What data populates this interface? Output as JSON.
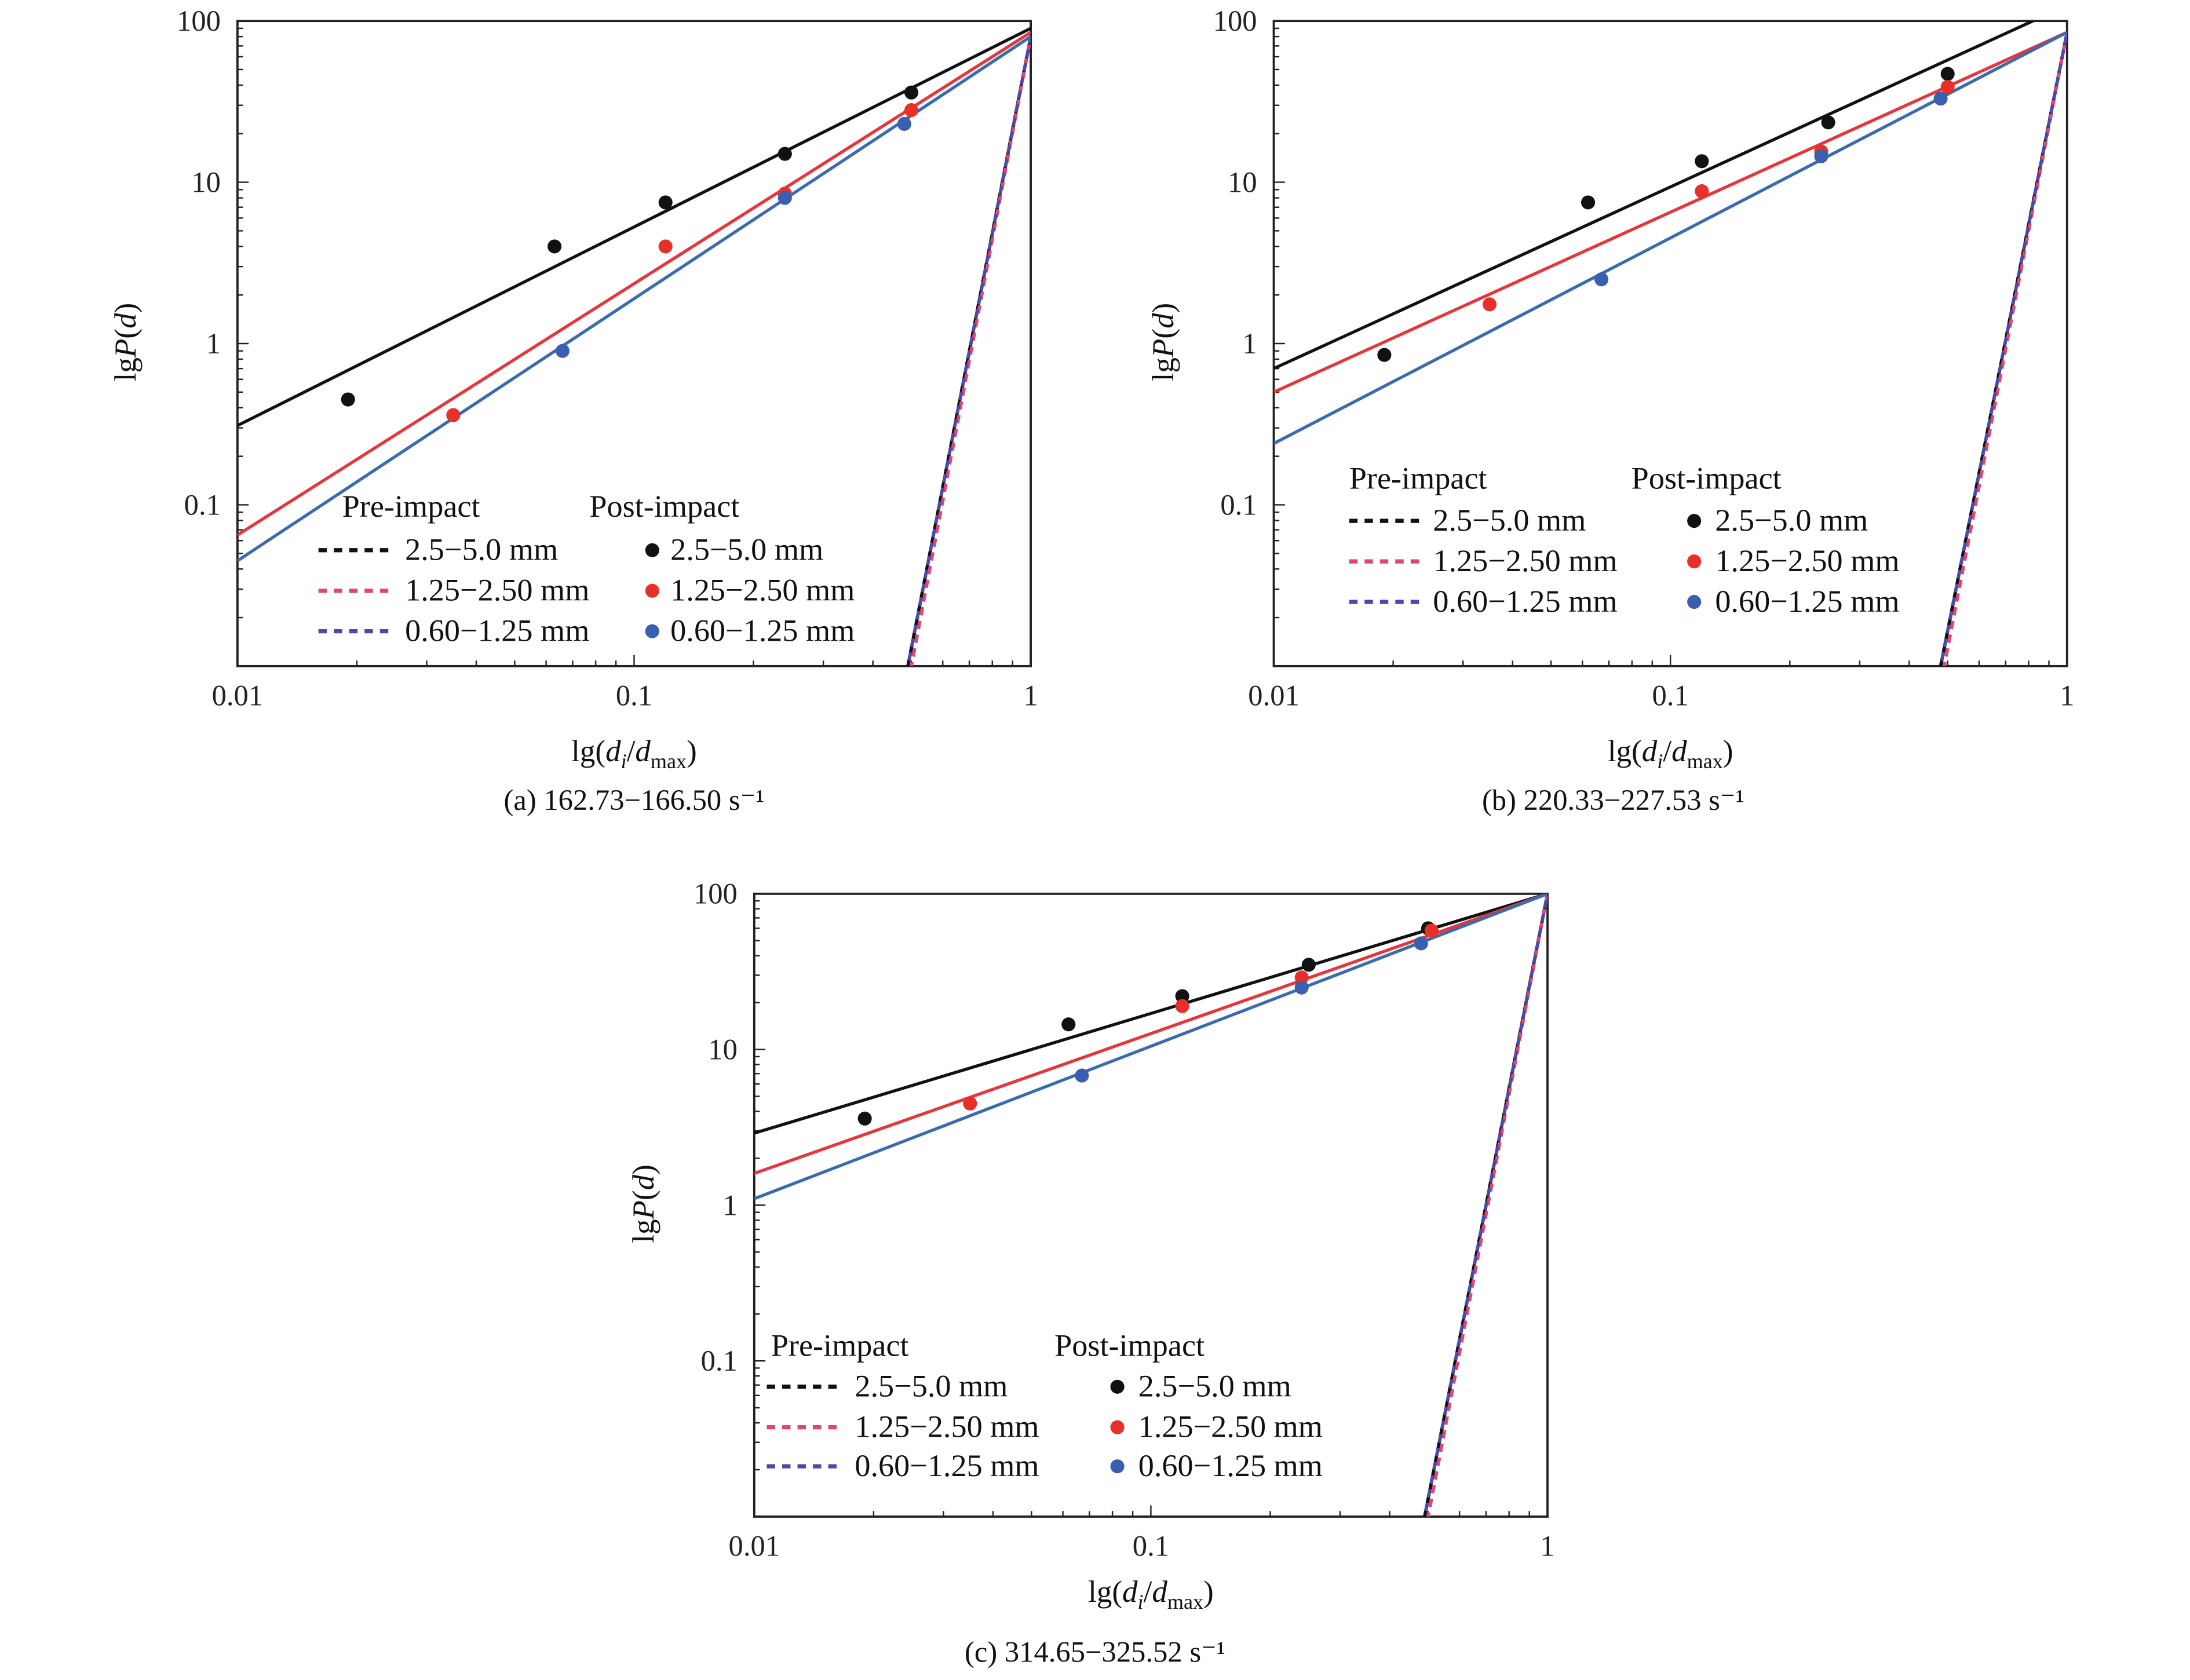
{
  "chart_data": [
    {
      "type": "scatter",
      "panel": "a",
      "caption": "(a) 162.73−166.50 s⁻¹",
      "xlabel_parts": [
        [
          "lg(",
          ""
        ],
        [
          "d",
          "italic"
        ],
        [
          "i",
          "sub-italic"
        ],
        [
          "/",
          ""
        ],
        [
          "d",
          "italic"
        ],
        [
          "max",
          "sub"
        ],
        [
          ")",
          ""
        ]
      ],
      "ylabel_parts": [
        [
          "lg",
          ""
        ],
        [
          "P",
          "italic"
        ],
        [
          "(",
          ""
        ],
        [
          "d",
          "italic"
        ],
        [
          ")",
          ""
        ]
      ],
      "xscale": "log",
      "yscale": "log",
      "xlim": [
        0.01,
        1
      ],
      "ylim": [
        0.01,
        100
      ],
      "xticks": [
        "0.01",
        "0.1",
        "1"
      ],
      "yticks": [
        "0.1",
        "1",
        "10",
        "100"
      ],
      "grid": false,
      "legend": {
        "placement": "bottom",
        "pre_title": "Pre-impact",
        "post_title": "Post-impact"
      },
      "series": [
        {
          "name": "2.5−5.0 mm",
          "group": "Post-impact",
          "color": "#111111",
          "x": [
            0.019,
            0.063,
            0.12,
            0.24,
            0.5
          ],
          "y": [
            0.45,
            4.0,
            7.5,
            15,
            36
          ]
        },
        {
          "name": "1.25−2.50 mm",
          "group": "Post-impact",
          "color": "#e8302a",
          "x": [
            0.035,
            0.12,
            0.24,
            0.5
          ],
          "y": [
            0.36,
            4.0,
            8.5,
            28
          ]
        },
        {
          "name": "0.60−1.25 mm",
          "group": "Post-impact",
          "color": "#3a5fb0",
          "x": [
            0.066,
            0.24,
            0.48
          ],
          "y": [
            0.9,
            8.0,
            23
          ]
        }
      ],
      "fits": [
        {
          "color": "#111111",
          "x": [
            0.01,
            1
          ],
          "y": [
            0.31,
            90
          ]
        },
        {
          "color": "#e8343a",
          "x": [
            0.01,
            1
          ],
          "y": [
            0.065,
            85
          ]
        },
        {
          "color": "#3a6ab0",
          "x": [
            0.01,
            1
          ],
          "y": [
            0.045,
            80
          ]
        }
      ],
      "pre_impact": [
        {
          "name": "2.5−5.0 mm",
          "color": "#111111",
          "x": [
            0.49,
            1
          ],
          "y": [
            0.01,
            80
          ]
        },
        {
          "name": "1.25−2.50 mm",
          "color": "#e0457a",
          "x": [
            0.5,
            1
          ],
          "y": [
            0.01,
            80
          ]
        },
        {
          "name": "0.60−1.25 mm",
          "color": "#4a4aa8",
          "x": [
            0.49,
            1
          ],
          "y": [
            0.01,
            80
          ]
        }
      ]
    },
    {
      "type": "scatter",
      "panel": "b",
      "caption": "(b) 220.33−227.53 s⁻¹",
      "xlabel_parts": [
        [
          "lg(",
          ""
        ],
        [
          "d",
          "italic"
        ],
        [
          "i",
          "sub-italic"
        ],
        [
          "/",
          ""
        ],
        [
          "d",
          "italic"
        ],
        [
          "max",
          "sub"
        ],
        [
          ")",
          ""
        ]
      ],
      "ylabel_parts": [
        [
          "lg",
          ""
        ],
        [
          "P",
          "italic"
        ],
        [
          "(",
          ""
        ],
        [
          "d",
          "italic"
        ],
        [
          ")",
          ""
        ]
      ],
      "xscale": "log",
      "yscale": "log",
      "xlim": [
        0.01,
        1
      ],
      "ylim": [
        0.01,
        100
      ],
      "xticks": [
        "0.01",
        "0.1",
        "1"
      ],
      "yticks": [
        "0.1",
        "1",
        "10",
        "100"
      ],
      "grid": false,
      "legend": {
        "placement": "bottom",
        "pre_title": "Pre-impact",
        "post_title": "Post-impact"
      },
      "series": [
        {
          "name": "2.5−5.0 mm",
          "group": "Post-impact",
          "color": "#111111",
          "x": [
            0.019,
            0.062,
            0.12,
            0.25,
            0.5
          ],
          "y": [
            0.85,
            7.5,
            13.5,
            23.5,
            47
          ]
        },
        {
          "name": "1.25−2.50 mm",
          "group": "Post-impact",
          "color": "#e8302a",
          "x": [
            0.035,
            0.12,
            0.24,
            0.5
          ],
          "y": [
            1.75,
            8.8,
            15.5,
            39
          ]
        },
        {
          "name": "0.60−1.25 mm",
          "group": "Post-impact",
          "color": "#3a5fb0",
          "x": [
            0.067,
            0.24,
            0.48
          ],
          "y": [
            2.5,
            14.5,
            33
          ]
        }
      ],
      "fits": [
        {
          "color": "#111111",
          "x": [
            0.01,
            1
          ],
          "y": [
            0.7,
            125
          ]
        },
        {
          "color": "#e8343a",
          "x": [
            0.01,
            1
          ],
          "y": [
            0.5,
            85
          ]
        },
        {
          "color": "#3a6ab0",
          "x": [
            0.01,
            1
          ],
          "y": [
            0.24,
            85
          ]
        }
      ],
      "pre_impact": [
        {
          "name": "2.5−5.0 mm",
          "color": "#111111",
          "x": [
            0.48,
            1
          ],
          "y": [
            0.01,
            85
          ]
        },
        {
          "name": "1.25−2.50 mm",
          "color": "#e0457a",
          "x": [
            0.49,
            1
          ],
          "y": [
            0.01,
            85
          ]
        },
        {
          "name": "0.60−1.25 mm",
          "color": "#4a4aa8",
          "x": [
            0.48,
            1
          ],
          "y": [
            0.01,
            85
          ]
        }
      ]
    },
    {
      "type": "scatter",
      "panel": "c",
      "caption": "(c) 314.65−325.52 s⁻¹",
      "xlabel_parts": [
        [
          "lg(",
          ""
        ],
        [
          "d",
          "italic"
        ],
        [
          "i",
          "sub-italic"
        ],
        [
          "/",
          ""
        ],
        [
          "d",
          "italic"
        ],
        [
          "max",
          "sub"
        ],
        [
          ")",
          ""
        ]
      ],
      "ylabel_parts": [
        [
          "lg",
          ""
        ],
        [
          "P",
          "italic"
        ],
        [
          "(",
          ""
        ],
        [
          "d",
          "italic"
        ],
        [
          ")",
          ""
        ]
      ],
      "xscale": "log",
      "yscale": "log",
      "xlim": [
        0.01,
        1
      ],
      "ylim": [
        0.01,
        100
      ],
      "xticks": [
        "0.01",
        "0.1",
        "1"
      ],
      "yticks": [
        "0.1",
        "1",
        "10",
        "100"
      ],
      "grid": false,
      "legend": {
        "placement": "bottom",
        "pre_title": "Pre-impact",
        "post_title": "Post-impact"
      },
      "series": [
        {
          "name": "2.5−5.0 mm",
          "group": "Post-impact",
          "color": "#111111",
          "x": [
            0.019,
            0.062,
            0.12,
            0.25,
            0.5
          ],
          "y": [
            3.6,
            14.5,
            22,
            35,
            60
          ]
        },
        {
          "name": "1.25−2.50 mm",
          "group": "Post-impact",
          "color": "#e8302a",
          "x": [
            0.035,
            0.12,
            0.24,
            0.51
          ],
          "y": [
            4.5,
            19,
            29,
            58
          ]
        },
        {
          "name": "0.60−1.25 mm",
          "group": "Post-impact",
          "color": "#3a5fb0",
          "x": [
            0.067,
            0.24,
            0.48
          ],
          "y": [
            6.8,
            25,
            48
          ]
        }
      ],
      "fits": [
        {
          "color": "#111111",
          "x": [
            0.01,
            1
          ],
          "y": [
            2.9,
            100
          ]
        },
        {
          "color": "#e8343a",
          "x": [
            0.01,
            1
          ],
          "y": [
            1.6,
            100
          ]
        },
        {
          "color": "#3a6ab0",
          "x": [
            0.01,
            1
          ],
          "y": [
            1.1,
            100
          ]
        }
      ],
      "pre_impact": [
        {
          "name": "2.5−5.0 mm",
          "color": "#111111",
          "x": [
            0.49,
            1
          ],
          "y": [
            0.01,
            100
          ]
        },
        {
          "name": "1.25−2.50 mm",
          "color": "#e0457a",
          "x": [
            0.5,
            1
          ],
          "y": [
            0.01,
            100
          ]
        },
        {
          "name": "0.60−1.25 mm",
          "color": "#4a4aa8",
          "x": [
            0.49,
            1
          ],
          "y": [
            0.01,
            100
          ]
        }
      ]
    }
  ]
}
